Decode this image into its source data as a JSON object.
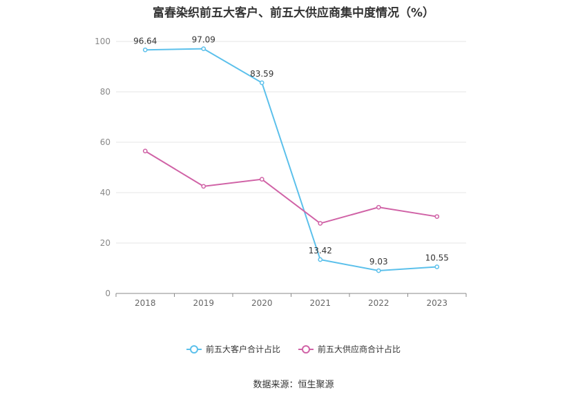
{
  "title": "富春染织前五大客户、前五大供应商集中度情况（%）",
  "source": "数据来源：恒生聚源",
  "chart_data": {
    "type": "line",
    "categories": [
      "2018",
      "2019",
      "2020",
      "2021",
      "2022",
      "2023"
    ],
    "ylim": [
      0,
      100
    ],
    "yticks": [
      0,
      20,
      40,
      60,
      80,
      100
    ],
    "grid": true,
    "legend_position": "bottom",
    "series": [
      {
        "name": "前五大客户合计占比",
        "color": "#5bc0eb",
        "values": [
          96.64,
          97.09,
          83.59,
          13.42,
          9.03,
          10.55
        ],
        "labels": [
          "96.64",
          "97.09",
          "83.59",
          "13.42",
          "9.03",
          "10.55"
        ]
      },
      {
        "name": "前五大供应商合计占比",
        "color": "#d062a6",
        "values": [
          56.5,
          42.5,
          45.3,
          27.8,
          34.2,
          30.5
        ],
        "labels": []
      }
    ]
  }
}
